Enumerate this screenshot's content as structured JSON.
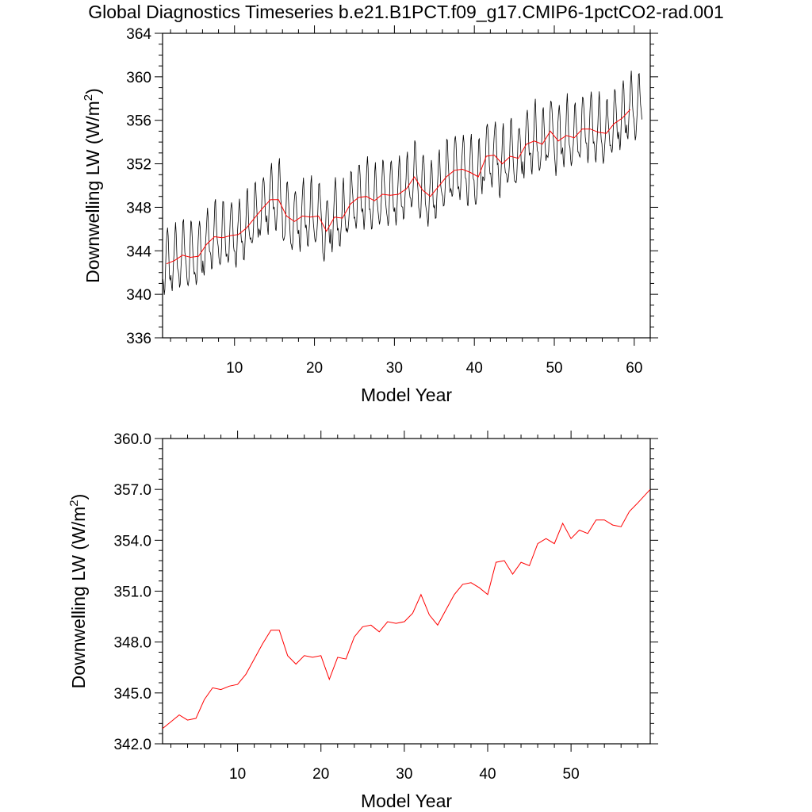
{
  "title": "Global Diagnostics Timeseries b.e21.B1PCT.f09_g17.CMIP6-1pctCO2-rad.001",
  "colors": {
    "monthly": "#000000",
    "annual": "#ff0000",
    "axis": "#000000"
  },
  "chart_data": [
    {
      "type": "line",
      "xlabel": "Model Year",
      "ylabel": "Downwelling LW (W/m²)",
      "ylabel_main": "Downwelling LW (W/m",
      "ylabel_sup": "2",
      "ylabel_end": ")",
      "xlim": [
        1,
        62
      ],
      "ylim": [
        336,
        364
      ],
      "xticks": [
        "10",
        "20",
        "30",
        "40",
        "50",
        "60"
      ],
      "yticks": [
        "336",
        "340",
        "344",
        "348",
        "352",
        "356",
        "360",
        "364"
      ],
      "series": [
        {
          "kind": "monthly",
          "seasonal_amplitude": 3.0,
          "values": [
            342.8,
            343.1,
            343.6,
            343.4,
            343.5,
            344.6,
            345.3,
            345.2,
            345.4,
            345.5,
            346.1,
            347.0,
            347.9,
            348.7,
            348.7,
            347.2,
            346.7,
            347.2,
            347.1,
            347.2,
            345.8,
            347.1,
            347.0,
            348.3,
            348.9,
            349.0,
            348.6,
            349.2,
            349.1,
            349.2,
            349.7,
            350.8,
            349.6,
            349.0,
            349.9,
            350.8,
            351.4,
            351.5,
            351.2,
            350.8,
            352.7,
            352.8,
            352.0,
            352.7,
            352.5,
            353.8,
            354.1,
            353.8,
            355.0,
            354.1,
            354.6,
            354.4,
            355.2,
            355.2,
            354.9,
            354.8,
            355.7,
            356.2,
            357.0,
            357.1
          ]
        },
        {
          "kind": "annual",
          "x": [
            1.5,
            2.5,
            3.5,
            4.5,
            5.5,
            6.5,
            7.5,
            8.5,
            9.5,
            10.5,
            11.5,
            12.5,
            13.5,
            14.5,
            15.5,
            16.5,
            17.5,
            18.5,
            19.5,
            20.5,
            21.5,
            22.5,
            23.5,
            24.5,
            25.5,
            26.5,
            27.5,
            28.5,
            29.5,
            30.5,
            31.5,
            32.5,
            33.5,
            34.5,
            35.5,
            36.5,
            37.5,
            38.5,
            39.5,
            40.5,
            41.5,
            42.5,
            43.5,
            44.5,
            45.5,
            46.5,
            47.5,
            48.5,
            49.5,
            50.5,
            51.5,
            52.5,
            53.5,
            54.5,
            55.5,
            56.5,
            57.5,
            58.5,
            59.5
          ],
          "values": [
            342.8,
            343.1,
            343.6,
            343.4,
            343.5,
            344.6,
            345.3,
            345.2,
            345.4,
            345.5,
            346.1,
            347.0,
            347.9,
            348.7,
            348.7,
            347.2,
            346.7,
            347.2,
            347.1,
            347.2,
            345.8,
            347.1,
            347.0,
            348.3,
            348.9,
            349.0,
            348.6,
            349.2,
            349.1,
            349.2,
            349.7,
            350.8,
            349.6,
            349.0,
            349.9,
            350.8,
            351.4,
            351.5,
            351.2,
            350.8,
            352.7,
            352.8,
            352.0,
            352.7,
            352.5,
            353.8,
            354.1,
            353.8,
            355.0,
            354.1,
            354.6,
            354.4,
            355.2,
            355.2,
            354.9,
            354.8,
            355.7,
            356.2,
            357.0
          ]
        }
      ]
    },
    {
      "type": "line",
      "xlabel": "Model Year",
      "ylabel": "Downwelling LW (W/m²)",
      "ylabel_main": "Downwelling LW (W/m",
      "ylabel_sup": "2",
      "ylabel_end": ")",
      "xlim": [
        1,
        59.5
      ],
      "ylim": [
        342,
        360
      ],
      "xticks": [
        "10",
        "20",
        "30",
        "40",
        "50"
      ],
      "yticks": [
        "342.0",
        "345.0",
        "348.0",
        "351.0",
        "354.0",
        "357.0",
        "360.0"
      ],
      "series": [
        {
          "kind": "annual",
          "x": [
            1.0,
            2.0,
            3.0,
            4.0,
            5.0,
            6.0,
            7.0,
            8.0,
            9.0,
            10.0,
            11.0,
            12.0,
            13.0,
            14.0,
            15.0,
            16.0,
            17.0,
            18.0,
            19.0,
            20.0,
            21.0,
            22.0,
            23.0,
            24.0,
            25.0,
            26.0,
            27.0,
            28.0,
            29.0,
            30.0,
            31.0,
            32.0,
            33.0,
            34.0,
            35.0,
            36.0,
            37.0,
            38.0,
            39.0,
            40.0,
            41.0,
            42.0,
            43.0,
            44.0,
            45.0,
            46.0,
            47.0,
            48.0,
            49.0,
            50.0,
            51.0,
            52.0,
            53.0,
            54.0,
            55.0,
            56.0,
            57.0,
            58.0,
            59.5
          ],
          "values": [
            342.9,
            343.3,
            343.7,
            343.4,
            343.5,
            344.6,
            345.3,
            345.2,
            345.4,
            345.5,
            346.1,
            347.0,
            347.9,
            348.7,
            348.7,
            347.2,
            346.7,
            347.2,
            347.1,
            347.2,
            345.8,
            347.1,
            347.0,
            348.3,
            348.9,
            349.0,
            348.6,
            349.2,
            349.1,
            349.2,
            349.7,
            350.8,
            349.6,
            349.0,
            349.9,
            350.8,
            351.4,
            351.5,
            351.2,
            350.8,
            352.7,
            352.8,
            352.0,
            352.7,
            352.5,
            353.8,
            354.1,
            353.8,
            355.0,
            354.1,
            354.6,
            354.4,
            355.2,
            355.2,
            354.9,
            354.8,
            355.7,
            356.2,
            357.0
          ]
        }
      ]
    }
  ]
}
